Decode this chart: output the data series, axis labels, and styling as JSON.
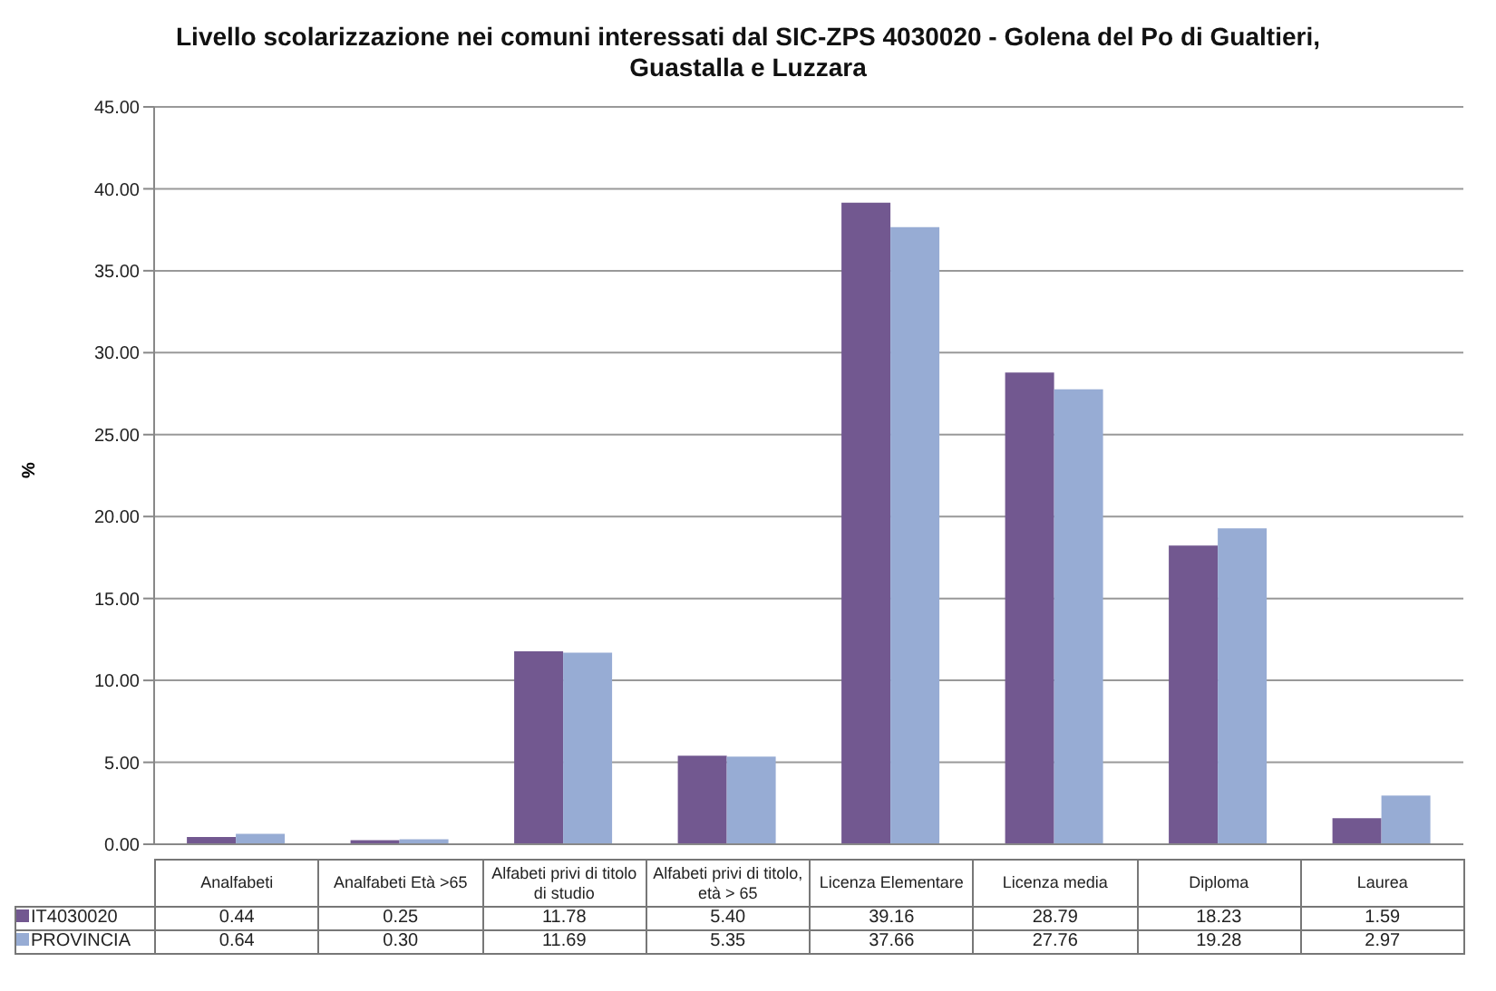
{
  "chart_data": {
    "type": "bar",
    "title": "Livello scolarizzazione nei comuni interessati dal SIC-ZPS 4030020 -  Golena del Po di Gualtieri, Guastalla e Luzzara",
    "ylabel": "%",
    "categories": [
      "Analfabeti",
      "Analfabeti Età >65",
      "Alfabeti privi di titolo di studio",
      "Alfabeti privi di titolo, età > 65",
      "Licenza Elementare",
      "Licenza media",
      "Diploma",
      "Laurea"
    ],
    "series": [
      {
        "name": "IT4030020",
        "color": "#725890",
        "values": [
          0.44,
          0.25,
          11.78,
          5.4,
          39.16,
          28.79,
          18.23,
          1.59
        ],
        "value_labels": [
          "0.44",
          "0.25",
          "11.78",
          "5.40",
          "39.16",
          "28.79",
          "18.23",
          "1.59"
        ]
      },
      {
        "name": "PROVINCIA",
        "color": "#97acd4",
        "values": [
          0.64,
          0.3,
          11.69,
          5.35,
          37.66,
          27.76,
          19.28,
          2.97
        ],
        "value_labels": [
          "0.64",
          "0.30",
          "11.69",
          "5.35",
          "37.66",
          "27.76",
          "19.28",
          "2.97"
        ]
      }
    ],
    "ylim": [
      0,
      45
    ],
    "yticks": [
      {
        "value": 0,
        "label": "0.00"
      },
      {
        "value": 5,
        "label": "5.00"
      },
      {
        "value": 10,
        "label": "10.00"
      },
      {
        "value": 15,
        "label": "15.00"
      },
      {
        "value": 20,
        "label": "20.00"
      },
      {
        "value": 25,
        "label": "25.00"
      },
      {
        "value": 30,
        "label": "30.00"
      },
      {
        "value": 35,
        "label": "35.00"
      },
      {
        "value": 40,
        "label": "40.00"
      },
      {
        "value": 45,
        "label": "45.00"
      }
    ],
    "grid": "y",
    "legend": "bottom"
  }
}
